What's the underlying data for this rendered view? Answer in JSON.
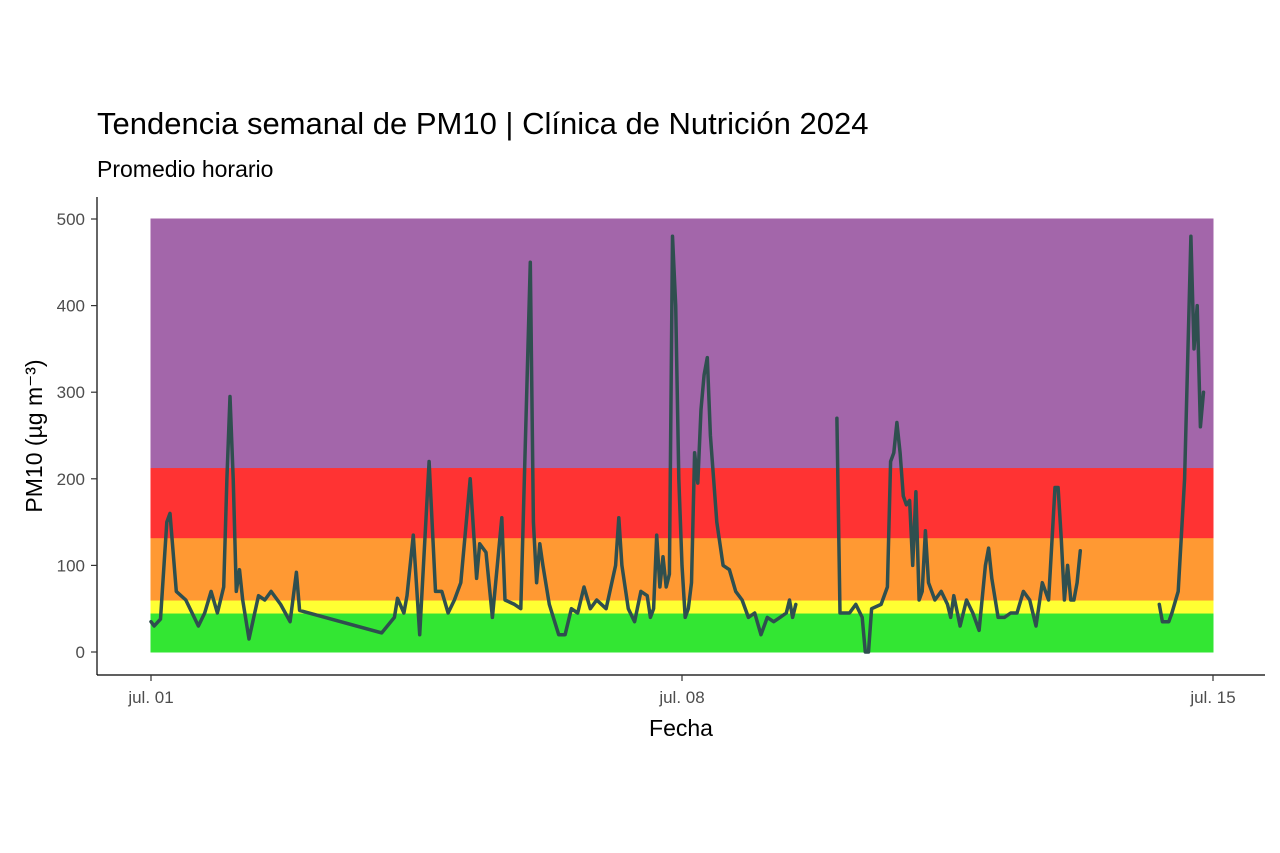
{
  "chart_data": {
    "type": "line",
    "title": "Tendencia semanal de PM10 | Clínica de Nutrición 2024",
    "subtitle": "Promedio horario",
    "xlabel": "Fecha",
    "ylabel": "PM10 (µg m⁻³)",
    "x_range": [
      "2024-07-01",
      "2024-07-15"
    ],
    "ylim": [
      0,
      500
    ],
    "x_ticks": [
      {
        "date": "2024-07-01",
        "label": "jul. 01"
      },
      {
        "date": "2024-07-08",
        "label": "jul. 08"
      },
      {
        "date": "2024-07-15",
        "label": "jul. 15"
      }
    ],
    "y_ticks": [
      0,
      100,
      200,
      300,
      400,
      500
    ],
    "grid": false,
    "legend": "none",
    "bands": [
      {
        "from": 0,
        "to": 45,
        "color": "#33e633"
      },
      {
        "from": 45,
        "to": 60,
        "color": "#ffff33"
      },
      {
        "from": 60,
        "to": 132,
        "color": "#ff9933"
      },
      {
        "from": 132,
        "to": 213,
        "color": "#ff3333"
      },
      {
        "from": 213,
        "to": 500,
        "color": "#a366aa"
      }
    ],
    "line_color": "#2f4f4f",
    "series": [
      {
        "segments": [
          [
            [
              "2024-07-01 00:00",
              35
            ],
            [
              "2024-07-01 01:00",
              30
            ],
            [
              "2024-07-01 03:00",
              38
            ],
            [
              "2024-07-01 05:00",
              150
            ],
            [
              "2024-07-01 06:00",
              160
            ],
            [
              "2024-07-01 08:00",
              70
            ],
            [
              "2024-07-01 11:00",
              60
            ],
            [
              "2024-07-01 15:00",
              30
            ],
            [
              "2024-07-01 17:00",
              45
            ],
            [
              "2024-07-01 19:00",
              70
            ],
            [
              "2024-07-01 21:00",
              45
            ],
            [
              "2024-07-01 23:00",
              75
            ],
            [
              "2024-07-02 00:00",
              200
            ],
            [
              "2024-07-02 01:00",
              295
            ],
            [
              "2024-07-02 02:00",
              200
            ],
            [
              "2024-07-02 03:00",
              70
            ],
            [
              "2024-07-02 04:00",
              95
            ],
            [
              "2024-07-02 05:00",
              60
            ],
            [
              "2024-07-02 07:00",
              15
            ],
            [
              "2024-07-02 10:00",
              65
            ],
            [
              "2024-07-02 12:00",
              60
            ],
            [
              "2024-07-02 14:00",
              70
            ],
            [
              "2024-07-02 17:00",
              55
            ],
            [
              "2024-07-02 20:00",
              35
            ],
            [
              "2024-07-02 22:00",
              92
            ],
            [
              "2024-07-02 23:00",
              48
            ],
            [
              "2024-07-04 01:00",
              22
            ],
            [
              "2024-07-04 05:00",
              40
            ],
            [
              "2024-07-04 06:00",
              62
            ],
            [
              "2024-07-04 08:00",
              45
            ],
            [
              "2024-07-04 09:00",
              65
            ],
            [
              "2024-07-04 11:00",
              135
            ],
            [
              "2024-07-04 13:00",
              20
            ],
            [
              "2024-07-04 16:00",
              220
            ],
            [
              "2024-07-04 18:00",
              70
            ],
            [
              "2024-07-04 20:00",
              70
            ],
            [
              "2024-07-04 22:00",
              45
            ],
            [
              "2024-07-05 00:00",
              60
            ],
            [
              "2024-07-05 02:00",
              80
            ],
            [
              "2024-07-05 05:00",
              200
            ],
            [
              "2024-07-05 07:00",
              85
            ],
            [
              "2024-07-05 08:00",
              125
            ],
            [
              "2024-07-05 10:00",
              115
            ],
            [
              "2024-07-05 12:00",
              40
            ],
            [
              "2024-07-05 15:00",
              155
            ],
            [
              "2024-07-05 16:00",
              60
            ],
            [
              "2024-07-05 19:00",
              55
            ],
            [
              "2024-07-05 21:00",
              50
            ],
            [
              "2024-07-06 00:00",
              450
            ],
            [
              "2024-07-06 01:00",
              150
            ],
            [
              "2024-07-06 02:00",
              80
            ],
            [
              "2024-07-06 03:00",
              125
            ],
            [
              "2024-07-06 04:00",
              100
            ],
            [
              "2024-07-06 06:00",
              55
            ],
            [
              "2024-07-06 09:00",
              20
            ],
            [
              "2024-07-06 11:00",
              20
            ],
            [
              "2024-07-06 13:00",
              50
            ],
            [
              "2024-07-06 15:00",
              45
            ],
            [
              "2024-07-06 17:00",
              75
            ],
            [
              "2024-07-06 19:00",
              50
            ],
            [
              "2024-07-06 21:00",
              60
            ],
            [
              "2024-07-07 00:00",
              50
            ],
            [
              "2024-07-07 03:00",
              100
            ],
            [
              "2024-07-07 04:00",
              155
            ],
            [
              "2024-07-07 05:00",
              100
            ],
            [
              "2024-07-07 07:00",
              50
            ],
            [
              "2024-07-07 09:00",
              35
            ],
            [
              "2024-07-07 11:00",
              70
            ],
            [
              "2024-07-07 13:00",
              65
            ],
            [
              "2024-07-07 14:00",
              40
            ],
            [
              "2024-07-07 15:00",
              50
            ],
            [
              "2024-07-07 16:00",
              135
            ],
            [
              "2024-07-07 17:00",
              75
            ],
            [
              "2024-07-07 18:00",
              110
            ],
            [
              "2024-07-07 19:00",
              75
            ],
            [
              "2024-07-07 20:00",
              90
            ],
            [
              "2024-07-07 21:00",
              480
            ],
            [
              "2024-07-07 22:00",
              400
            ],
            [
              "2024-07-07 23:00",
              200
            ],
            [
              "2024-07-08 00:00",
              100
            ],
            [
              "2024-07-08 01:00",
              40
            ],
            [
              "2024-07-08 02:00",
              50
            ],
            [
              "2024-07-08 03:00",
              80
            ],
            [
              "2024-07-08 04:00",
              230
            ],
            [
              "2024-07-08 05:00",
              195
            ],
            [
              "2024-07-08 06:00",
              280
            ],
            [
              "2024-07-08 07:00",
              320
            ],
            [
              "2024-07-08 08:00",
              340
            ],
            [
              "2024-07-08 09:00",
              250
            ],
            [
              "2024-07-08 11:00",
              150
            ],
            [
              "2024-07-08 13:00",
              100
            ],
            [
              "2024-07-08 15:00",
              95
            ],
            [
              "2024-07-08 17:00",
              70
            ],
            [
              "2024-07-08 19:00",
              60
            ],
            [
              "2024-07-08 21:00",
              40
            ],
            [
              "2024-07-08 23:00",
              45
            ],
            [
              "2024-07-09 01:00",
              20
            ],
            [
              "2024-07-09 03:00",
              40
            ],
            [
              "2024-07-09 05:00",
              35
            ],
            [
              "2024-07-09 07:00",
              40
            ],
            [
              "2024-07-09 09:00",
              45
            ],
            [
              "2024-07-09 10:00",
              60
            ],
            [
              "2024-07-09 11:00",
              40
            ],
            [
              "2024-07-09 12:00",
              55
            ]
          ],
          [
            [
              "2024-07-10 01:00",
              270
            ],
            [
              "2024-07-10 02:00",
              45
            ],
            [
              "2024-07-10 05:00",
              45
            ],
            [
              "2024-07-10 07:00",
              55
            ],
            [
              "2024-07-10 09:00",
              40
            ],
            [
              "2024-07-10 10:00",
              0
            ],
            [
              "2024-07-10 11:00",
              0
            ],
            [
              "2024-07-10 12:00",
              50
            ],
            [
              "2024-07-10 15:00",
              55
            ],
            [
              "2024-07-10 17:00",
              75
            ],
            [
              "2024-07-10 18:00",
              220
            ],
            [
              "2024-07-10 19:00",
              230
            ],
            [
              "2024-07-10 20:00",
              265
            ],
            [
              "2024-07-10 21:00",
              230
            ],
            [
              "2024-07-10 22:00",
              180
            ],
            [
              "2024-07-10 23:00",
              170
            ],
            [
              "2024-07-11 00:00",
              175
            ],
            [
              "2024-07-11 01:00",
              100
            ],
            [
              "2024-07-11 02:00",
              185
            ],
            [
              "2024-07-11 03:00",
              60
            ],
            [
              "2024-07-11 04:00",
              70
            ],
            [
              "2024-07-11 05:00",
              140
            ],
            [
              "2024-07-11 06:00",
              80
            ],
            [
              "2024-07-11 08:00",
              60
            ],
            [
              "2024-07-11 10:00",
              70
            ],
            [
              "2024-07-11 12:00",
              55
            ],
            [
              "2024-07-11 13:00",
              40
            ],
            [
              "2024-07-11 14:00",
              65
            ],
            [
              "2024-07-11 16:00",
              30
            ],
            [
              "2024-07-11 18:00",
              60
            ],
            [
              "2024-07-11 20:00",
              45
            ],
            [
              "2024-07-11 22:00",
              25
            ],
            [
              "2024-07-12 00:00",
              100
            ],
            [
              "2024-07-12 01:00",
              120
            ],
            [
              "2024-07-12 02:00",
              85
            ],
            [
              "2024-07-12 04:00",
              40
            ],
            [
              "2024-07-12 06:00",
              40
            ],
            [
              "2024-07-12 08:00",
              45
            ],
            [
              "2024-07-12 10:00",
              45
            ],
            [
              "2024-07-12 12:00",
              70
            ],
            [
              "2024-07-12 14:00",
              60
            ],
            [
              "2024-07-12 16:00",
              30
            ],
            [
              "2024-07-12 18:00",
              80
            ],
            [
              "2024-07-12 20:00",
              60
            ],
            [
              "2024-07-12 22:00",
              190
            ],
            [
              "2024-07-12 23:00",
              190
            ],
            [
              "2024-07-13 00:00",
              130
            ],
            [
              "2024-07-13 01:00",
              60
            ],
            [
              "2024-07-13 02:00",
              100
            ],
            [
              "2024-07-13 03:00",
              60
            ],
            [
              "2024-07-13 04:00",
              60
            ],
            [
              "2024-07-13 05:00",
              80
            ],
            [
              "2024-07-13 06:00",
              117
            ]
          ],
          [
            [
              "2024-07-14 07:00",
              55
            ],
            [
              "2024-07-14 08:00",
              35
            ],
            [
              "2024-07-14 10:00",
              35
            ],
            [
              "2024-07-14 11:00",
              45
            ],
            [
              "2024-07-14 13:00",
              70
            ],
            [
              "2024-07-14 15:00",
              200
            ],
            [
              "2024-07-14 17:00",
              480
            ],
            [
              "2024-07-14 18:00",
              350
            ],
            [
              "2024-07-14 19:00",
              400
            ],
            [
              "2024-07-14 20:00",
              260
            ],
            [
              "2024-07-14 21:00",
              300
            ]
          ]
        ]
      }
    ]
  }
}
